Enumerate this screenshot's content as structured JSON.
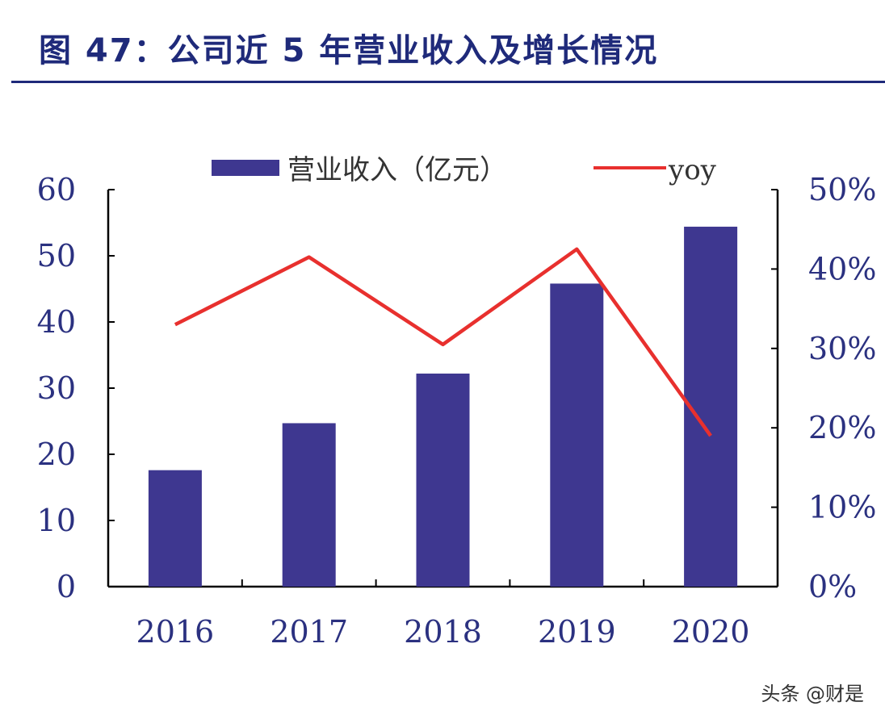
{
  "header": {
    "title": "图 47：公司近 5 年营业收入及增长情况"
  },
  "watermark": "头条 @财是",
  "chart_data": {
    "type": "bar",
    "categories": [
      "2016",
      "2017",
      "2018",
      "2019",
      "2020"
    ],
    "series": [
      {
        "name": "营业收入（亿元）",
        "type": "bar",
        "axis": "left",
        "values": [
          17.6,
          24.7,
          32.2,
          45.8,
          54.4
        ],
        "color": "#3e3790"
      },
      {
        "name": "yoy",
        "type": "line",
        "axis": "right",
        "values": [
          0.33,
          0.415,
          0.305,
          0.425,
          0.19
        ],
        "color": "#e8302e"
      }
    ],
    "ylim_left": [
      0,
      60
    ],
    "yticks_left": [
      "0",
      "10",
      "20",
      "30",
      "40",
      "50",
      "60"
    ],
    "ylim_right": [
      0,
      0.5
    ],
    "yticks_right": [
      "0%",
      "10%",
      "20%",
      "30%",
      "40%",
      "50%"
    ],
    "legend_position": "top",
    "grid": false
  }
}
